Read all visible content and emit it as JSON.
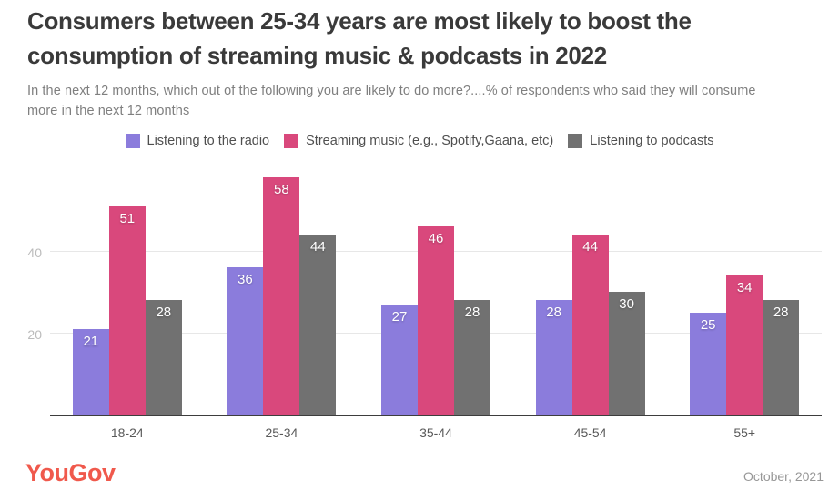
{
  "header": {
    "title_line1": "Consumers between 25-34 years are most likely to boost the",
    "title_line2": "consumption of streaming music & podcasts in 2022",
    "subtitle_line1": "In the next 12 months, which out of the following you are likely to do more?....% of respondents who said they will consume",
    "subtitle_line2": "more in the next 12 months"
  },
  "legend": {
    "items": [
      {
        "label": "Listening to the radio",
        "color": "#8b7cdc"
      },
      {
        "label": "Streaming music (e.g., Spotify,Gaana, etc)",
        "color": "#d9487c"
      },
      {
        "label": "Listening to podcasts",
        "color": "#717171"
      }
    ]
  },
  "chart_data": {
    "type": "bar",
    "categories": [
      "18-24",
      "25-34",
      "35-44",
      "45-54",
      "55+"
    ],
    "series": [
      {
        "name": "Listening to the radio",
        "slug": "radio",
        "color": "#8b7cdc",
        "values": [
          21,
          36,
          27,
          28,
          25
        ]
      },
      {
        "name": "Streaming music (e.g., Spotify,Gaana, etc)",
        "slug": "streaming",
        "color": "#d9487c",
        "values": [
          51,
          58,
          46,
          44,
          34
        ]
      },
      {
        "name": "Listening to podcasts",
        "slug": "podcasts",
        "color": "#717171",
        "values": [
          28,
          44,
          28,
          30,
          28
        ]
      }
    ],
    "title": "Consumers between 25-34 years are most likely to boost the consumption of streaming music & podcasts in 2022",
    "xlabel": "",
    "ylabel": "",
    "ylim": [
      0,
      60
    ],
    "yticks": [
      20,
      40
    ],
    "grid": true,
    "legend_position": "top",
    "value_labels": "inside-top",
    "axis_color": "#3d3d3d",
    "gridline_color": "#e7e7e7"
  },
  "footer": {
    "brand": "YouGov",
    "brand_color": "#f0594c",
    "date": "October, 2021"
  }
}
